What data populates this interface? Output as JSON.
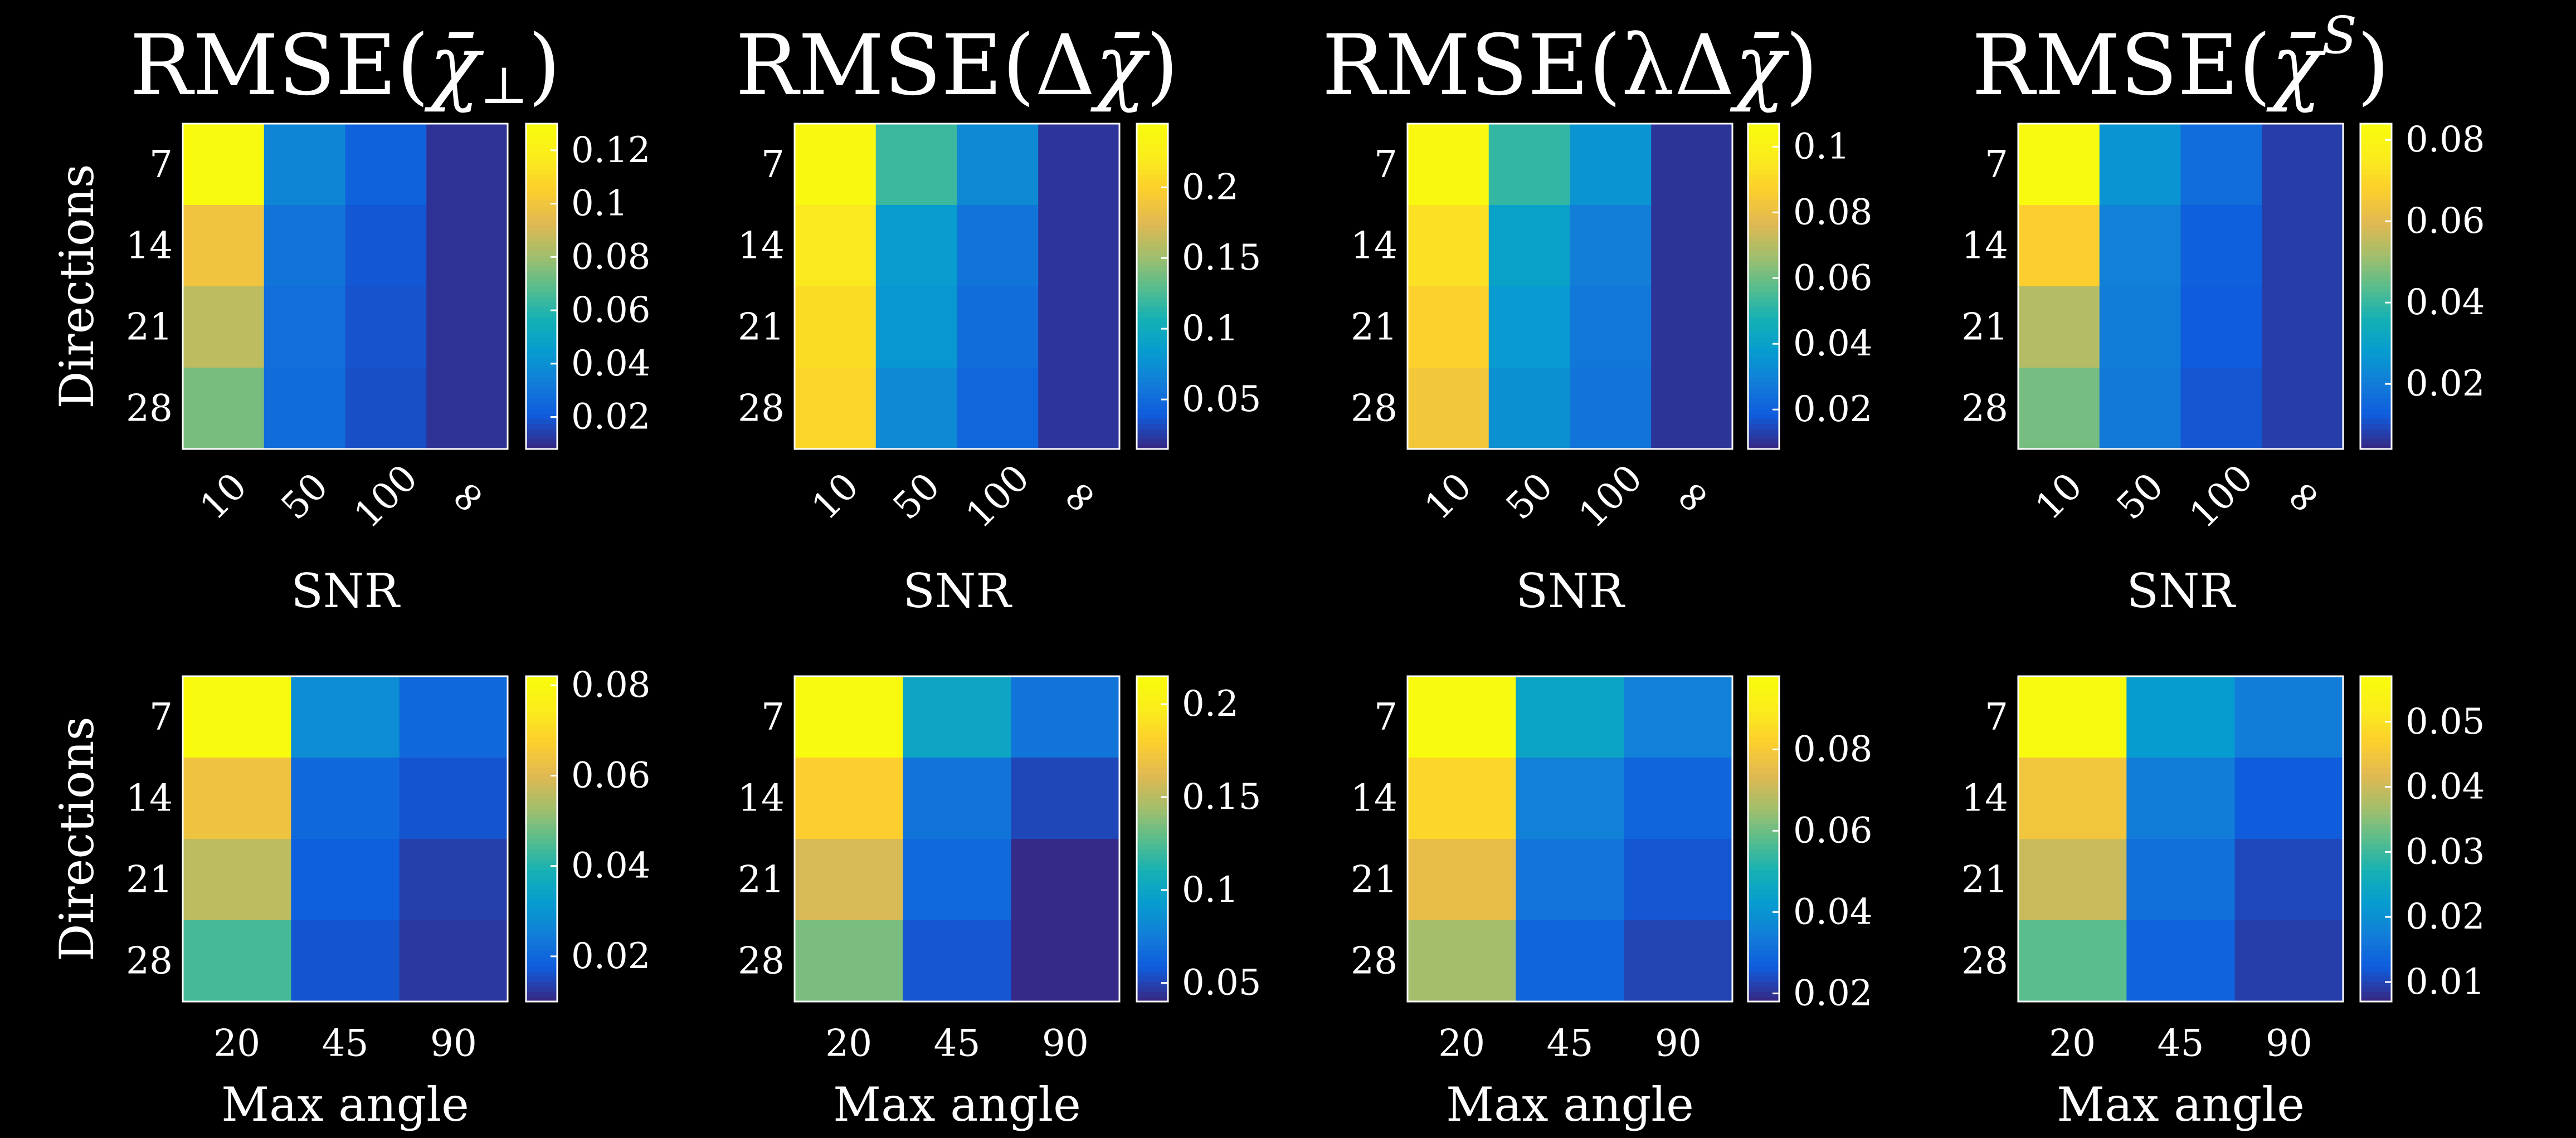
{
  "figure": {
    "background": "#000000",
    "foreground": "#ffffff",
    "colormap": "parula"
  },
  "chart_data": [
    {
      "type": "heatmap",
      "title_main": "RMSE(",
      "title_symbol": "χ̄",
      "title_mod": "⊥",
      "title_close": ")",
      "ylabel": "Directions",
      "xlabel": "SNR",
      "x_categories": [
        "10",
        "50",
        "100",
        "∞"
      ],
      "y_categories": [
        "7",
        "14",
        "21",
        "28"
      ],
      "values": [
        [
          0.13,
          0.036,
          0.022,
          0.01
        ],
        [
          0.1,
          0.029,
          0.019,
          0.01
        ],
        [
          0.086,
          0.027,
          0.018,
          0.01
        ],
        [
          0.074,
          0.026,
          0.017,
          0.01
        ]
      ],
      "clim": [
        0.008,
        0.13
      ],
      "colorbar_ticks": [
        0.02,
        0.04,
        0.06,
        0.08,
        0.1,
        0.12
      ],
      "colorbar_labels": [
        "0.02",
        "0.04",
        "0.06",
        "0.08",
        "0.1",
        "0.12"
      ]
    },
    {
      "type": "heatmap",
      "title_main": "RMSE(Δ",
      "title_symbol": "χ̄",
      "title_mod": "",
      "title_close": ")",
      "ylabel": "",
      "xlabel": "SNR",
      "x_categories": [
        "10",
        "50",
        "100",
        "∞"
      ],
      "y_categories": [
        "7",
        "14",
        "21",
        "28"
      ],
      "values": [
        [
          0.24,
          0.12,
          0.07,
          0.02
        ],
        [
          0.22,
          0.085,
          0.055,
          0.02
        ],
        [
          0.21,
          0.08,
          0.05,
          0.02
        ],
        [
          0.205,
          0.07,
          0.045,
          0.02
        ]
      ],
      "clim": [
        0.015,
        0.245
      ],
      "colorbar_ticks": [
        0.05,
        0.1,
        0.15,
        0.2
      ],
      "colorbar_labels": [
        "0.05",
        "0.1",
        "0.15",
        "0.2"
      ]
    },
    {
      "type": "heatmap",
      "title_main": "RMSE(λΔ",
      "title_symbol": "χ̄",
      "title_mod": "",
      "title_close": ")",
      "ylabel": "",
      "xlabel": "SNR",
      "x_categories": [
        "10",
        "50",
        "100",
        "∞"
      ],
      "y_categories": [
        "7",
        "14",
        "21",
        "28"
      ],
      "values": [
        [
          0.105,
          0.052,
          0.035,
          0.01
        ],
        [
          0.093,
          0.04,
          0.028,
          0.01
        ],
        [
          0.088,
          0.037,
          0.026,
          0.01
        ],
        [
          0.084,
          0.034,
          0.025,
          0.01
        ]
      ],
      "clim": [
        0.008,
        0.107
      ],
      "colorbar_ticks": [
        0.02,
        0.04,
        0.06,
        0.08,
        0.1
      ],
      "colorbar_labels": [
        "0.02",
        "0.04",
        "0.06",
        "0.08",
        "0.1"
      ]
    },
    {
      "type": "heatmap",
      "title_main": "RMSE(",
      "title_symbol": "χ̄",
      "title_mod": "S",
      "title_close": ")",
      "ylabel": "",
      "xlabel": "SNR",
      "x_categories": [
        "10",
        "50",
        "100",
        "∞"
      ],
      "y_categories": [
        "7",
        "14",
        "21",
        "28"
      ],
      "values": [
        [
          0.084,
          0.026,
          0.016,
          0.007
        ],
        [
          0.068,
          0.021,
          0.013,
          0.007
        ],
        [
          0.054,
          0.02,
          0.012,
          0.007
        ],
        [
          0.047,
          0.019,
          0.011,
          0.007
        ]
      ],
      "clim": [
        0.004,
        0.084
      ],
      "colorbar_ticks": [
        0.02,
        0.04,
        0.06,
        0.08
      ],
      "colorbar_labels": [
        "0.02",
        "0.04",
        "0.06",
        "0.08"
      ]
    },
    {
      "type": "heatmap",
      "title_main": "",
      "title_symbol": "",
      "title_mod": "",
      "title_close": "",
      "ylabel": "Directions",
      "xlabel": "Max angle",
      "x_categories": [
        "20",
        "45",
        "90"
      ],
      "y_categories": [
        "7",
        "14",
        "21",
        "28"
      ],
      "values": [
        [
          0.082,
          0.028,
          0.02
        ],
        [
          0.064,
          0.02,
          0.016
        ],
        [
          0.056,
          0.018,
          0.013
        ],
        [
          0.044,
          0.016,
          0.012
        ]
      ],
      "clim": [
        0.01,
        0.082
      ],
      "colorbar_ticks": [
        0.02,
        0.04,
        0.06,
        0.08
      ],
      "colorbar_labels": [
        "0.02",
        "0.04",
        "0.06",
        "0.08"
      ]
    },
    {
      "type": "heatmap",
      "title_main": "",
      "title_symbol": "",
      "title_mod": "",
      "title_close": "",
      "ylabel": "",
      "xlabel": "Max angle",
      "x_categories": [
        "20",
        "45",
        "90"
      ],
      "y_categories": [
        "7",
        "14",
        "21",
        "28"
      ],
      "values": [
        [
          0.215,
          0.1,
          0.07
        ],
        [
          0.18,
          0.07,
          0.05
        ],
        [
          0.16,
          0.065,
          0.04
        ],
        [
          0.135,
          0.055,
          0.035
        ]
      ],
      "clim": [
        0.04,
        0.215
      ],
      "colorbar_ticks": [
        0.05,
        0.1,
        0.15,
        0.2
      ],
      "colorbar_labels": [
        "0.05",
        "0.1",
        "0.15",
        "0.2"
      ]
    },
    {
      "type": "heatmap",
      "title_main": "",
      "title_symbol": "",
      "title_mod": "",
      "title_close": "",
      "ylabel": "",
      "xlabel": "Max angle",
      "x_categories": [
        "20",
        "45",
        "90"
      ],
      "y_categories": [
        "7",
        "14",
        "21",
        "28"
      ],
      "values": [
        [
          0.098,
          0.045,
          0.035
        ],
        [
          0.084,
          0.035,
          0.028
        ],
        [
          0.076,
          0.032,
          0.025
        ],
        [
          0.066,
          0.028,
          0.022
        ]
      ],
      "clim": [
        0.018,
        0.098
      ],
      "colorbar_ticks": [
        0.02,
        0.04,
        0.06,
        0.08
      ],
      "colorbar_labels": [
        "0.02",
        "0.04",
        "0.06",
        "0.08"
      ]
    },
    {
      "type": "heatmap",
      "title_main": "",
      "title_symbol": "",
      "title_mod": "",
      "title_close": "",
      "ylabel": "",
      "xlabel": "Max angle",
      "x_categories": [
        "20",
        "45",
        "90"
      ],
      "y_categories": [
        "7",
        "14",
        "21",
        "28"
      ],
      "values": [
        [
          0.057,
          0.022,
          0.017
        ],
        [
          0.045,
          0.017,
          0.012
        ],
        [
          0.04,
          0.015,
          0.01
        ],
        [
          0.032,
          0.013,
          0.009
        ]
      ],
      "clim": [
        0.007,
        0.057
      ],
      "colorbar_ticks": [
        0.01,
        0.02,
        0.03,
        0.04,
        0.05
      ],
      "colorbar_labels": [
        "0.01",
        "0.02",
        "0.03",
        "0.04",
        "0.05"
      ]
    }
  ]
}
